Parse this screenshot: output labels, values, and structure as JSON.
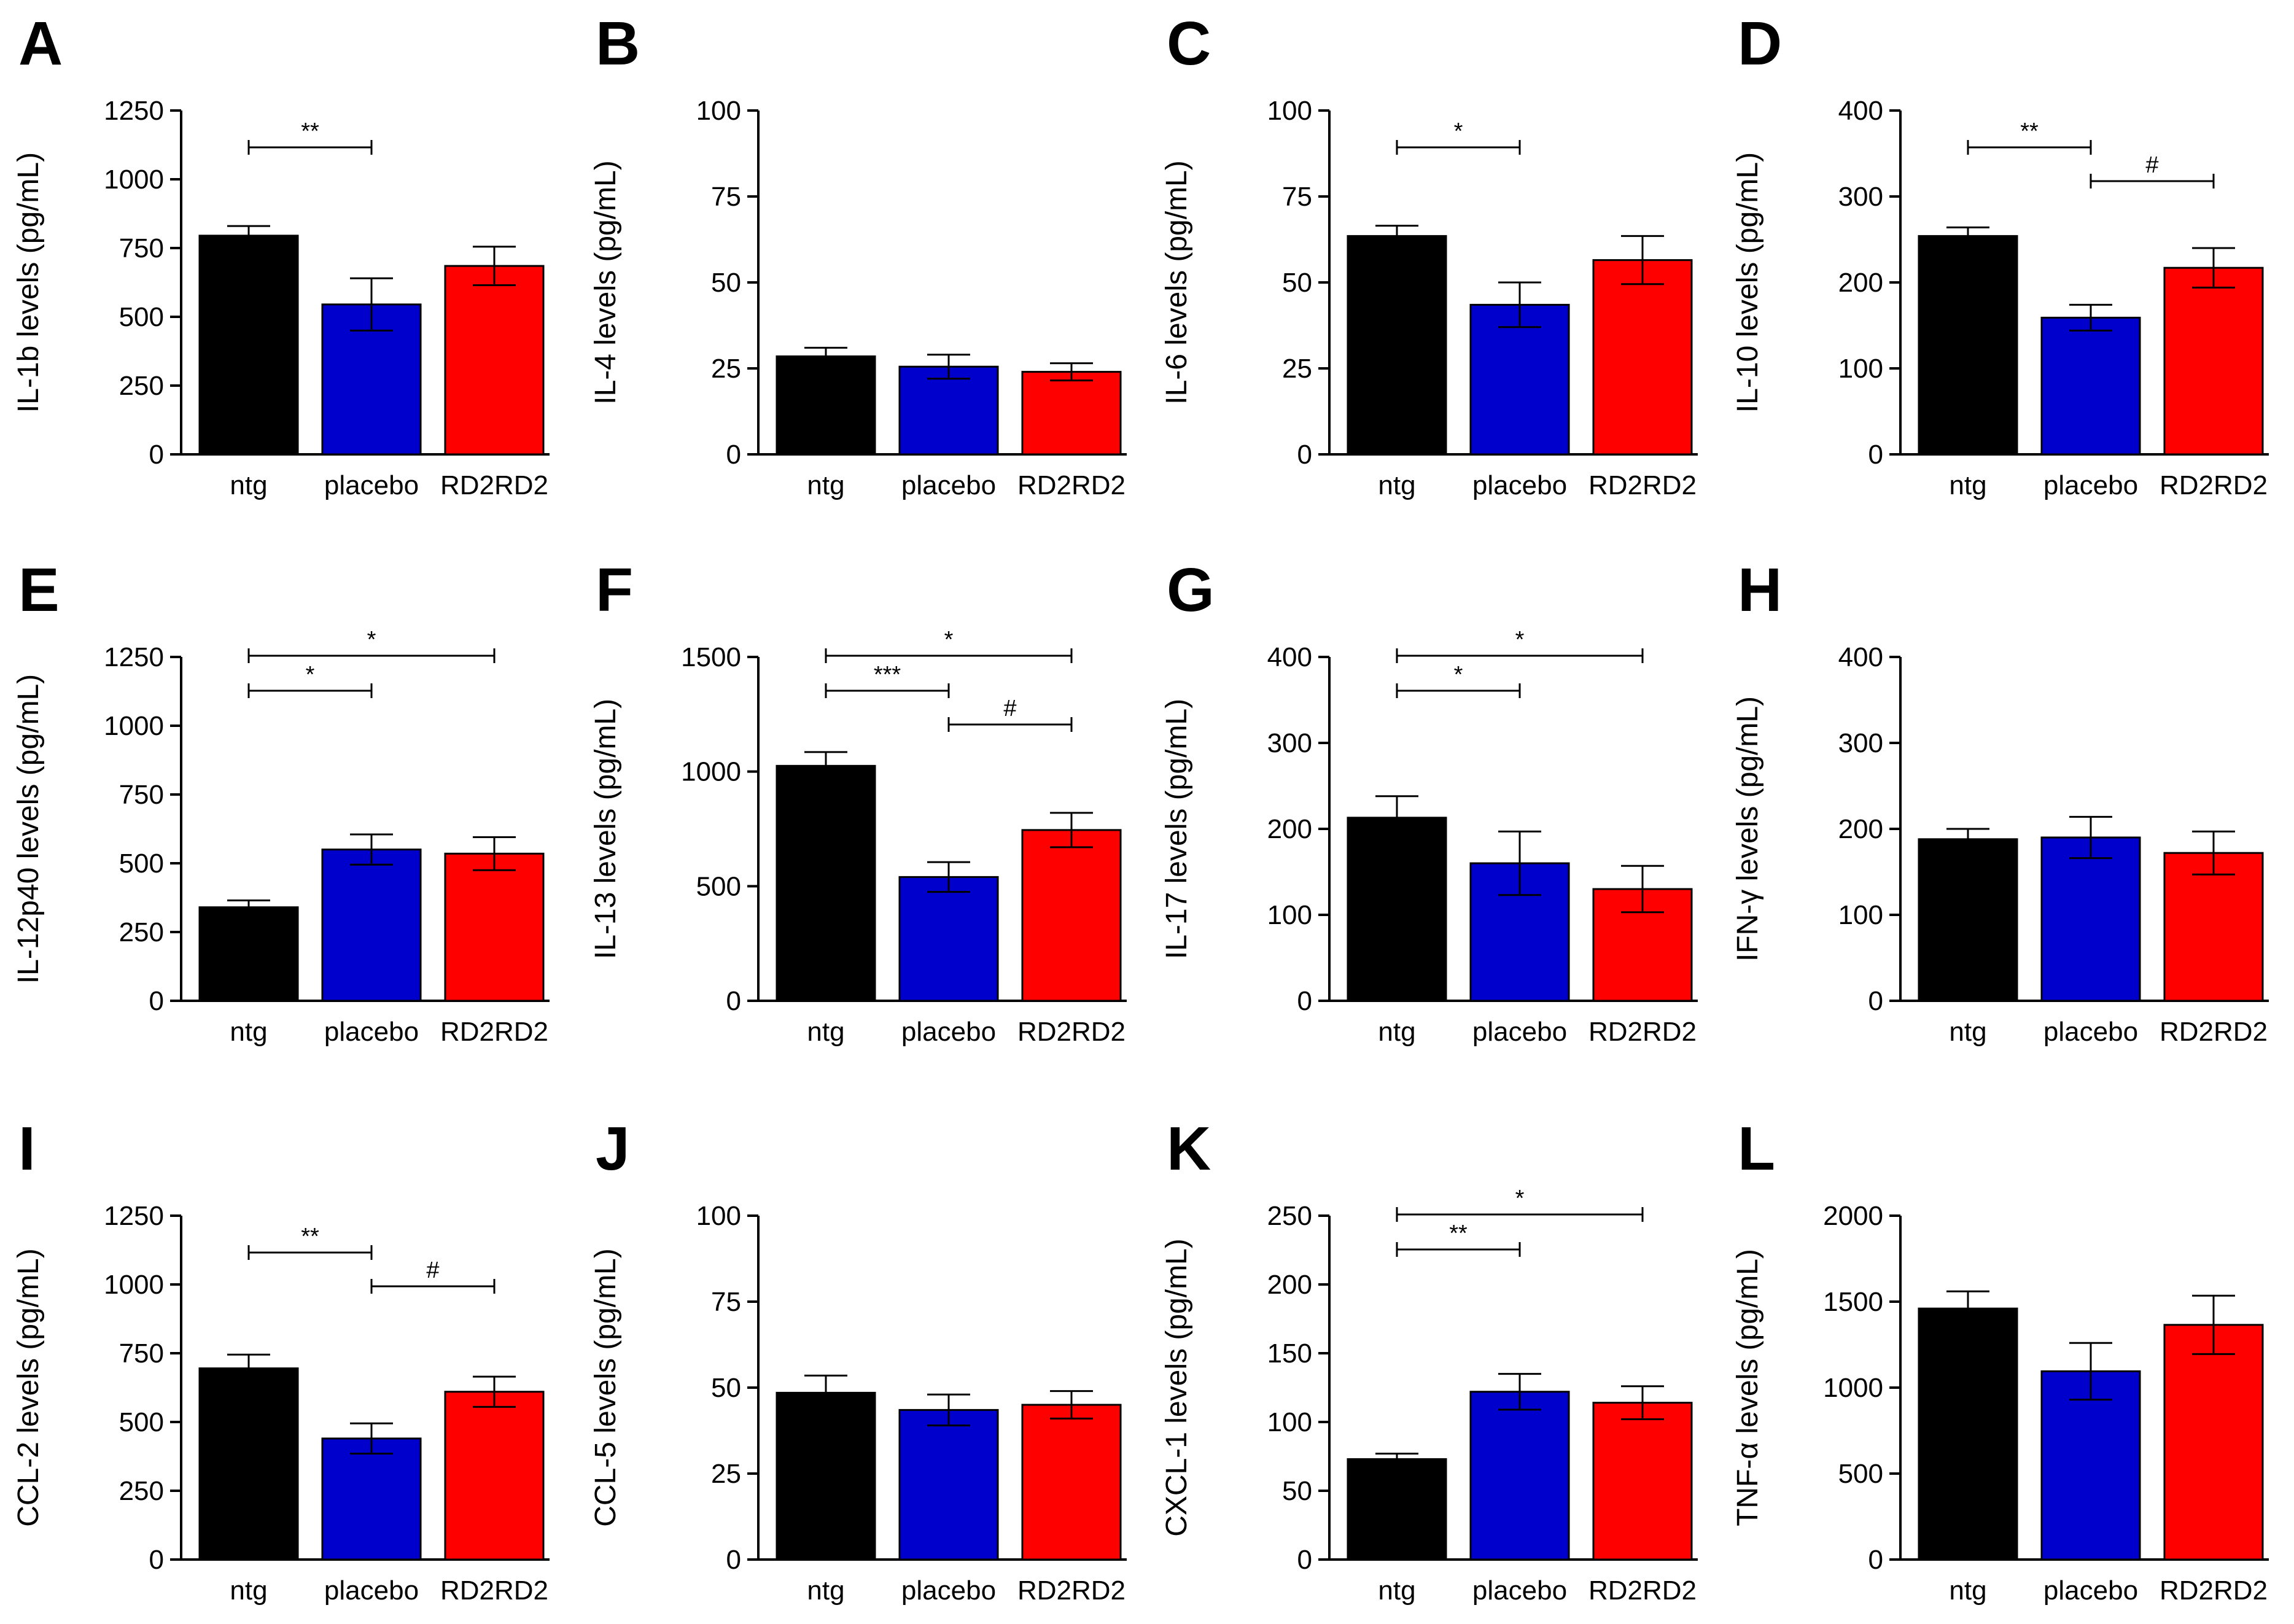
{
  "colors": {
    "ntg": "#000000",
    "placebo": "#0000CC",
    "RD2RD2": "#FF0000"
  },
  "chart_data": [
    {
      "panel": "A",
      "type": "bar",
      "categories": [
        "ntg",
        "placebo",
        "RD2RD2"
      ],
      "values": [
        795,
        545,
        685
      ],
      "errors": [
        35,
        95,
        70
      ],
      "ylabel": "IL-1b levels (pg/mL)",
      "ylim": [
        0,
        1250
      ],
      "yticks": [
        "0",
        "250",
        "500",
        "750",
        "1000",
        "1250"
      ],
      "significance": [
        {
          "from": 0,
          "to": 1,
          "label": "**"
        }
      ]
    },
    {
      "panel": "B",
      "type": "bar",
      "categories": [
        "ntg",
        "placebo",
        "RD2RD2"
      ],
      "values": [
        28.5,
        25.5,
        24
      ],
      "errors": [
        2.5,
        3.5,
        2.5
      ],
      "ylabel": "IL-4 levels (pg/mL)",
      "ylim": [
        0,
        100
      ],
      "yticks": [
        "0",
        "25",
        "50",
        "75",
        "100"
      ],
      "significance": []
    },
    {
      "panel": "C",
      "type": "bar",
      "categories": [
        "ntg",
        "placebo",
        "RD2RD2"
      ],
      "values": [
        63.5,
        43.5,
        56.5
      ],
      "errors": [
        3,
        6.5,
        7
      ],
      "ylabel": "IL-6 levels (pg/mL)",
      "ylim": [
        0,
        100
      ],
      "yticks": [
        "0",
        "25",
        "50",
        "75",
        "100"
      ],
      "significance": [
        {
          "from": 0,
          "to": 1,
          "label": "*"
        }
      ]
    },
    {
      "panel": "D",
      "type": "bar",
      "categories": [
        "ntg",
        "placebo",
        "RD2RD2"
      ],
      "values": [
        254,
        159,
        217
      ],
      "errors": [
        10,
        15,
        23
      ],
      "ylabel": "IL-10 levels (pg/mL)",
      "ylim": [
        0,
        400
      ],
      "yticks": [
        "0",
        "100",
        "200",
        "300",
        "400"
      ],
      "significance": [
        {
          "from": 0,
          "to": 1,
          "label": "**"
        },
        {
          "from": 1,
          "to": 2,
          "label": "#"
        }
      ]
    },
    {
      "panel": "E",
      "type": "bar",
      "categories": [
        "ntg",
        "placebo",
        "RD2RD2"
      ],
      "values": [
        340,
        550,
        535
      ],
      "errors": [
        25,
        55,
        60
      ],
      "ylabel": "IL-12p40 levels (pg/mL)",
      "ylim": [
        0,
        1250
      ],
      "yticks": [
        "0",
        "250",
        "500",
        "750",
        "1000",
        "1250"
      ],
      "significance": [
        {
          "from": 0,
          "to": 1,
          "label": "*"
        },
        {
          "from": 0,
          "to": 2,
          "label": "*"
        }
      ]
    },
    {
      "panel": "F",
      "type": "bar",
      "categories": [
        "ntg",
        "placebo",
        "RD2RD2"
      ],
      "values": [
        1025,
        540,
        745
      ],
      "errors": [
        60,
        65,
        75
      ],
      "ylabel": "IL-13 levels (pg/mL)",
      "ylim": [
        0,
        1500
      ],
      "yticks": [
        "0",
        "500",
        "1000",
        "1500"
      ],
      "significance": [
        {
          "from": 0,
          "to": 1,
          "label": "***"
        },
        {
          "from": 0,
          "to": 2,
          "label": "*"
        },
        {
          "from": 1,
          "to": 2,
          "label": "#"
        }
      ]
    },
    {
      "panel": "G",
      "type": "bar",
      "categories": [
        "ntg",
        "placebo",
        "RD2RD2"
      ],
      "values": [
        213,
        160,
        130
      ],
      "errors": [
        25,
        37,
        27
      ],
      "ylabel": "IL-17 levels (pg/mL)",
      "ylim": [
        0,
        400
      ],
      "yticks": [
        "0",
        "100",
        "200",
        "300",
        "400"
      ],
      "significance": [
        {
          "from": 0,
          "to": 1,
          "label": "*"
        },
        {
          "from": 0,
          "to": 2,
          "label": "*"
        }
      ]
    },
    {
      "panel": "H",
      "type": "bar",
      "categories": [
        "ntg",
        "placebo",
        "RD2RD2"
      ],
      "values": [
        188,
        190,
        172
      ],
      "errors": [
        12,
        24,
        25
      ],
      "ylabel": "IFN-γ levels (pg/mL)",
      "ylim": [
        0,
        400
      ],
      "yticks": [
        "0",
        "100",
        "200",
        "300",
        "400"
      ],
      "significance": []
    },
    {
      "panel": "I",
      "type": "bar",
      "categories": [
        "ntg",
        "placebo",
        "RD2RD2"
      ],
      "values": [
        695,
        440,
        610
      ],
      "errors": [
        50,
        55,
        55
      ],
      "ylabel": "CCL-2 levels (pg/mL)",
      "ylim": [
        0,
        1250
      ],
      "yticks": [
        "0",
        "250",
        "500",
        "750",
        "1000",
        "1250"
      ],
      "significance": [
        {
          "from": 0,
          "to": 1,
          "label": "**"
        },
        {
          "from": 1,
          "to": 2,
          "label": "#"
        }
      ]
    },
    {
      "panel": "J",
      "type": "bar",
      "categories": [
        "ntg",
        "placebo",
        "RD2RD2"
      ],
      "values": [
        48.5,
        43.5,
        45
      ],
      "errors": [
        5,
        4.5,
        4
      ],
      "ylabel": "CCL-5 levels (pg/mL)",
      "ylim": [
        0,
        100
      ],
      "yticks": [
        "0",
        "25",
        "50",
        "75",
        "100"
      ],
      "significance": []
    },
    {
      "panel": "K",
      "type": "bar",
      "categories": [
        "ntg",
        "placebo",
        "RD2RD2"
      ],
      "values": [
        73,
        122,
        114
      ],
      "errors": [
        4,
        13,
        12
      ],
      "ylabel": "CXCL-1 levels (pg/mL)",
      "ylim": [
        0,
        250
      ],
      "yticks": [
        "0",
        "50",
        "100",
        "150",
        "200",
        "250"
      ],
      "significance": [
        {
          "from": 0,
          "to": 1,
          "label": "**"
        },
        {
          "from": 0,
          "to": 2,
          "label": "*"
        }
      ]
    },
    {
      "panel": "L",
      "type": "bar",
      "categories": [
        "ntg",
        "placebo",
        "RD2RD2"
      ],
      "values": [
        1460,
        1095,
        1365
      ],
      "errors": [
        100,
        165,
        170
      ],
      "ylabel": "TNF-α levels (pg/mL)",
      "ylim": [
        0,
        2000
      ],
      "yticks": [
        "0",
        "500",
        "1000",
        "1500",
        "2000"
      ],
      "significance": []
    }
  ]
}
